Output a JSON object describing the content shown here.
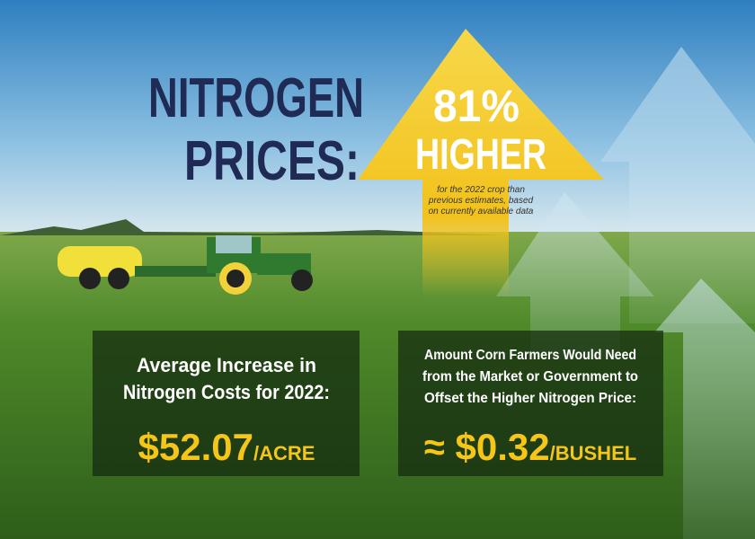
{
  "headline": {
    "lines": [
      "NITROGEN",
      "PRICES:"
    ]
  },
  "arrow": {
    "percent": "81%",
    "word": "HIGHER",
    "note": [
      "for the 2022 crop than",
      "previous estimates, based",
      "on currently available data"
    ]
  },
  "left_box": {
    "heading": [
      "Average Increase in",
      "Nitrogen Costs for 2022:"
    ],
    "amount": "$52.07",
    "unit": "/ACRE"
  },
  "right_box": {
    "heading": [
      "Amount Corn Farmers Would Need",
      "from the Market or Government to",
      "Offset the Higher Nitrogen Price:"
    ],
    "amount": "≈ $0.32",
    "unit": "/BUSHEL"
  }
}
